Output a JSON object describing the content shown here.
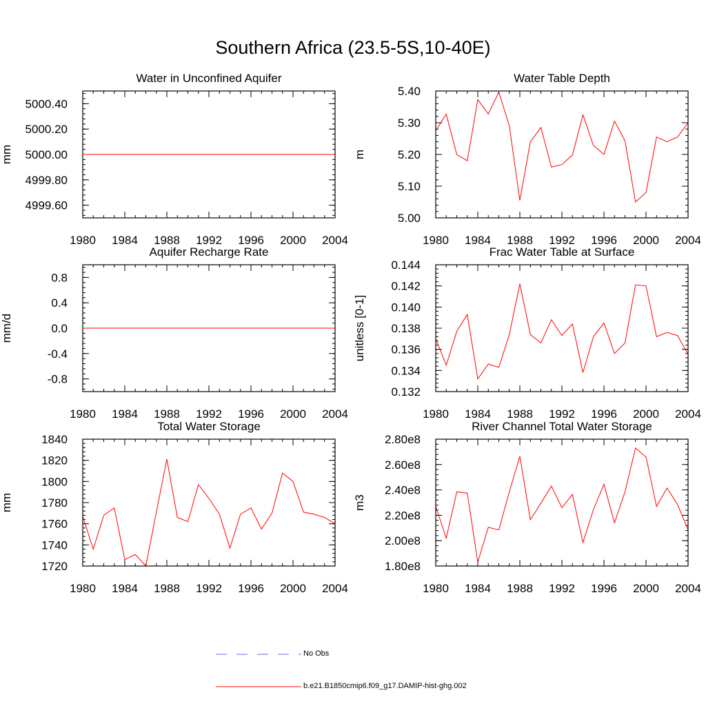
{
  "page": {
    "title": "Southern Africa (23.5-5S,10-40E)"
  },
  "legend": {
    "items": [
      {
        "label": "No Obs",
        "color": "#6a6adf",
        "style": "dashed"
      },
      {
        "label": "b.e21.B1850cmip6.f09_g17.DAMIP-hist-ghg.002",
        "color": "#ff0000",
        "style": "solid"
      }
    ]
  },
  "chart_data": [
    {
      "type": "line",
      "title": "Water in Unconfined Aquifer",
      "ylabel": "mm",
      "xlim": [
        1980,
        2004
      ],
      "ylim": [
        4999.5,
        5000.5
      ],
      "xticks": [
        1980,
        1984,
        1988,
        1992,
        1996,
        2000,
        2004
      ],
      "yticks": [
        4999.6,
        4999.8,
        5000.0,
        5000.2,
        5000.4
      ],
      "ytick_labels": [
        "4999.60",
        "4999.80",
        "5000.00",
        "5000.20",
        "5000.40"
      ],
      "series": [
        {
          "name": "b.e21.B1850cmip6.f09_g17.DAMIP-hist-ghg.002",
          "color": "#ff0000",
          "x": [
            1980,
            1981,
            1982,
            1983,
            1984,
            1985,
            1986,
            1987,
            1988,
            1989,
            1990,
            1991,
            1992,
            1993,
            1994,
            1995,
            1996,
            1997,
            1998,
            1999,
            2000,
            2001,
            2002,
            2003,
            2004
          ],
          "y": [
            5000,
            5000,
            5000,
            5000,
            5000,
            5000,
            5000,
            5000,
            5000,
            5000,
            5000,
            5000,
            5000,
            5000,
            5000,
            5000,
            5000,
            5000,
            5000,
            5000,
            5000,
            5000,
            5000,
            5000,
            5000
          ]
        }
      ]
    },
    {
      "type": "line",
      "title": "Water Table Depth",
      "ylabel": "m",
      "xlim": [
        1980,
        2004
      ],
      "ylim": [
        5.0,
        5.4
      ],
      "xticks": [
        1980,
        1984,
        1988,
        1992,
        1996,
        2000,
        2004
      ],
      "yticks": [
        5.0,
        5.1,
        5.2,
        5.3,
        5.4
      ],
      "ytick_labels": [
        "5.00",
        "5.10",
        "5.20",
        "5.30",
        "5.40"
      ],
      "series": [
        {
          "name": "b.e21.B1850cmip6.f09_g17.DAMIP-hist-ghg.002",
          "color": "#ff0000",
          "x": [
            1980,
            1981,
            1982,
            1983,
            1984,
            1985,
            1986,
            1987,
            1988,
            1989,
            1990,
            1991,
            1992,
            1993,
            1994,
            1995,
            1996,
            1997,
            1998,
            1999,
            2000,
            2001,
            2002,
            2003,
            2004
          ],
          "y": [
            5.275,
            5.327,
            5.2,
            5.18,
            5.373,
            5.327,
            5.397,
            5.29,
            5.055,
            5.24,
            5.285,
            5.16,
            5.168,
            5.198,
            5.325,
            5.228,
            5.2,
            5.305,
            5.243,
            5.05,
            5.08,
            5.255,
            5.24,
            5.255,
            5.3
          ]
        }
      ]
    },
    {
      "type": "line",
      "title": "Aquifer Recharge Rate",
      "ylabel": "mm/d",
      "xlim": [
        1980,
        2004
      ],
      "ylim": [
        -1.0,
        1.0
      ],
      "xticks": [
        1980,
        1984,
        1988,
        1992,
        1996,
        2000,
        2004
      ],
      "yticks": [
        -0.8,
        -0.4,
        0.0,
        0.4,
        0.8
      ],
      "ytick_labels": [
        "-0.8",
        "-0.4",
        "0.0",
        "0.4",
        "0.8"
      ],
      "series": [
        {
          "name": "b.e21.B1850cmip6.f09_g17.DAMIP-hist-ghg.002",
          "color": "#ff0000",
          "x": [
            1980,
            1981,
            1982,
            1983,
            1984,
            1985,
            1986,
            1987,
            1988,
            1989,
            1990,
            1991,
            1992,
            1993,
            1994,
            1995,
            1996,
            1997,
            1998,
            1999,
            2000,
            2001,
            2002,
            2003,
            2004
          ],
          "y": [
            0,
            0,
            0,
            0,
            0,
            0,
            0,
            0,
            0,
            0,
            0,
            0,
            0,
            0,
            0,
            0,
            0,
            0,
            0,
            0,
            0,
            0,
            0,
            0,
            0
          ]
        }
      ]
    },
    {
      "type": "line",
      "title": "Frac Water Table at Surface",
      "ylabel": "unitless [0-1]",
      "xlim": [
        1980,
        2004
      ],
      "ylim": [
        0.132,
        0.144
      ],
      "xticks": [
        1980,
        1984,
        1988,
        1992,
        1996,
        2000,
        2004
      ],
      "yticks": [
        0.132,
        0.134,
        0.136,
        0.138,
        0.14,
        0.142,
        0.144
      ],
      "ytick_labels": [
        "0.132",
        "0.134",
        "0.136",
        "0.138",
        "0.140",
        "0.142",
        "0.144"
      ],
      "series": [
        {
          "name": "b.e21.B1850cmip6.f09_g17.DAMIP-hist-ghg.002",
          "color": "#ff0000",
          "x": [
            1980,
            1981,
            1982,
            1983,
            1984,
            1985,
            1986,
            1987,
            1988,
            1989,
            1990,
            1991,
            1992,
            1993,
            1994,
            1995,
            1996,
            1997,
            1998,
            1999,
            2000,
            2001,
            2002,
            2003,
            2004
          ],
          "y": [
            0.137,
            0.1345,
            0.1377,
            0.1393,
            0.1332,
            0.1346,
            0.1343,
            0.1374,
            0.1422,
            0.1374,
            0.1366,
            0.1388,
            0.1373,
            0.1384,
            0.1338,
            0.1372,
            0.1385,
            0.1356,
            0.1366,
            0.1421,
            0.142,
            0.1372,
            0.1376,
            0.1373,
            0.1355
          ]
        }
      ]
    },
    {
      "type": "line",
      "title": "Total Water Storage",
      "ylabel": "mm",
      "xlim": [
        1980,
        2004
      ],
      "ylim": [
        1720,
        1840
      ],
      "xticks": [
        1980,
        1984,
        1988,
        1992,
        1996,
        2000,
        2004
      ],
      "yticks": [
        1720,
        1740,
        1760,
        1780,
        1800,
        1820,
        1840
      ],
      "ytick_labels": [
        "1720",
        "1740",
        "1760",
        "1780",
        "1800",
        "1820",
        "1840"
      ],
      "series": [
        {
          "name": "b.e21.B1850cmip6.f09_g17.DAMIP-hist-ghg.002",
          "color": "#ff0000",
          "x": [
            1980,
            1981,
            1982,
            1983,
            1984,
            1985,
            1986,
            1987,
            1988,
            1989,
            1990,
            1991,
            1992,
            1993,
            1994,
            1995,
            1996,
            1997,
            1998,
            1999,
            2000,
            2001,
            2002,
            2003,
            2004
          ],
          "y": [
            1767,
            1736,
            1768,
            1775,
            1726,
            1731,
            1720,
            1771,
            1821,
            1766,
            1762,
            1797,
            1784,
            1769,
            1737,
            1769,
            1775,
            1755,
            1770,
            1808,
            1800,
            1771,
            1769,
            1766,
            1760
          ]
        }
      ]
    },
    {
      "type": "line",
      "title": "River Channel Total Water Storage",
      "ylabel": "m3",
      "xlim": [
        1980,
        2004
      ],
      "ylim": [
        180000000,
        280000000
      ],
      "xticks": [
        1980,
        1984,
        1988,
        1992,
        1996,
        2000,
        2004
      ],
      "yticks": [
        180000000,
        200000000,
        220000000,
        240000000,
        260000000,
        280000000
      ],
      "ytick_labels": [
        "1.80e8",
        "2.00e8",
        "2.20e8",
        "2.40e8",
        "2.60e8",
        "2.80e8"
      ],
      "series": [
        {
          "name": "b.e21.B1850cmip6.f09_g17.DAMIP-hist-ghg.002",
          "color": "#ff0000",
          "x": [
            1980,
            1981,
            1982,
            1983,
            1984,
            1985,
            1986,
            1987,
            1988,
            1989,
            1990,
            1991,
            1992,
            1993,
            1994,
            1995,
            1996,
            1997,
            1998,
            1999,
            2000,
            2001,
            2002,
            2003,
            2004
          ],
          "y": [
            227000000,
            202000000,
            238500000,
            237500000,
            183000000,
            210500000,
            208500000,
            238500000,
            266500000,
            216500000,
            229500000,
            243000000,
            226000000,
            236500000,
            198500000,
            224500000,
            244500000,
            214000000,
            238500000,
            273000000,
            266000000,
            227000000,
            241500000,
            228500000,
            208500000
          ]
        }
      ]
    }
  ]
}
